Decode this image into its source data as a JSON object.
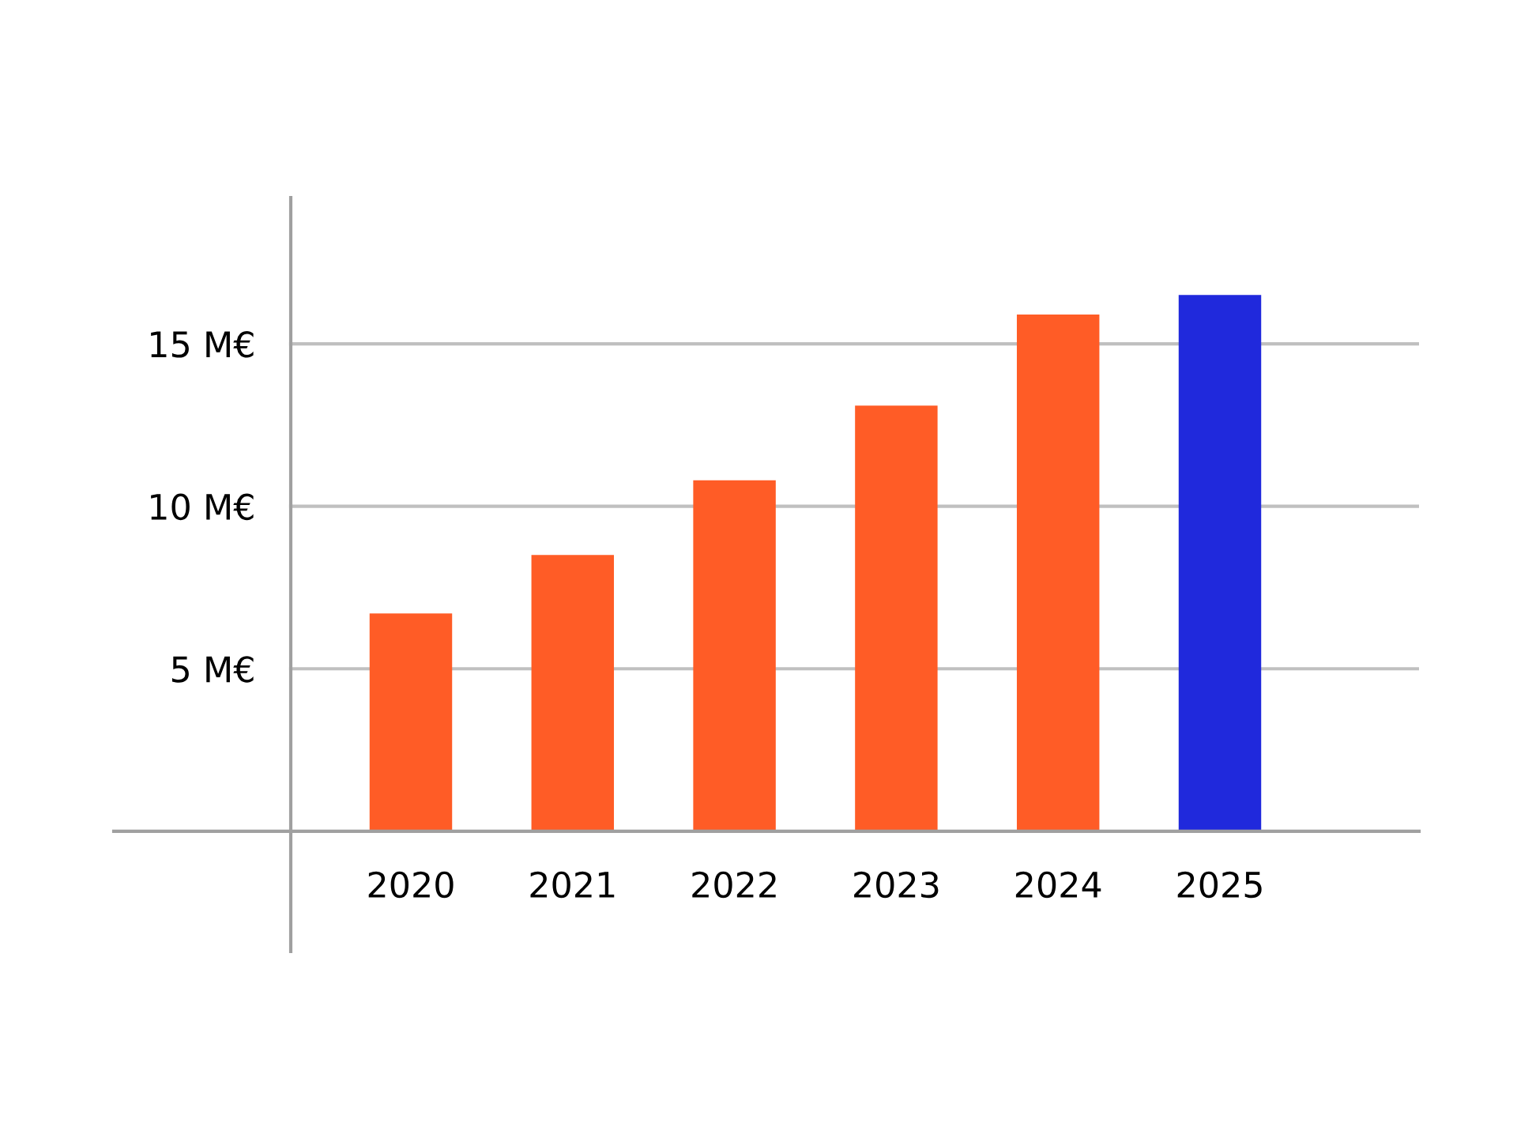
{
  "chart_data": {
    "type": "bar",
    "categories": [
      "2020",
      "2021",
      "2022",
      "2023",
      "2024",
      "2025"
    ],
    "values": [
      6.7,
      8.5,
      10.8,
      13.1,
      15.9,
      16.5
    ],
    "colors": [
      "#ff5c26",
      "#ff5c26",
      "#ff5c26",
      "#ff5c26",
      "#ff5c26",
      "#2029dc"
    ],
    "ylim": [
      -3.7,
      19.5
    ],
    "yticks": [
      {
        "value": 5,
        "label": "5 M€"
      },
      {
        "value": 10,
        "label": "10 M€"
      },
      {
        "value": 15,
        "label": "15 M€"
      }
    ],
    "grid": "y"
  }
}
